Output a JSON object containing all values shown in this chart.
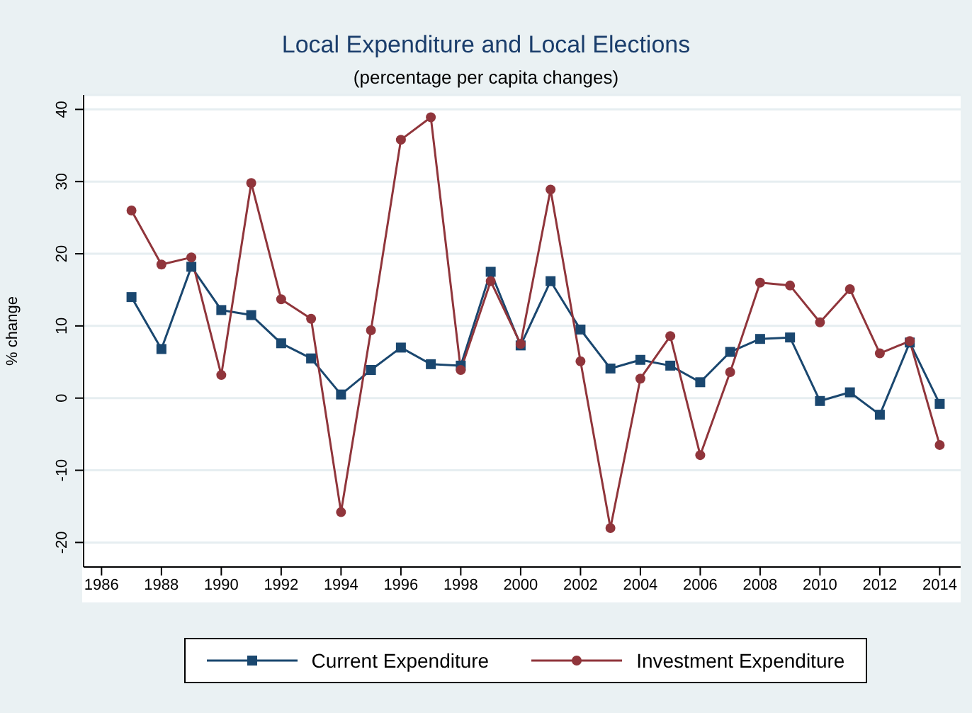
{
  "chart_data": {
    "type": "line",
    "title": "Local Expenditure and Local Elections",
    "subtitle": "(percentage per capita changes)",
    "ylabel": "% change",
    "x": [
      1987,
      1988,
      1989,
      1990,
      1991,
      1992,
      1993,
      1994,
      1995,
      1996,
      1997,
      1998,
      1999,
      2000,
      2001,
      2002,
      2003,
      2004,
      2005,
      2006,
      2007,
      2008,
      2009,
      2010,
      2011,
      2012,
      2013,
      2014
    ],
    "series": [
      {
        "name": "Current Expenditure",
        "color": "#1a476f",
        "marker": "square",
        "values": [
          14,
          6.8,
          18.2,
          12.2,
          11.5,
          7.6,
          5.5,
          0.5,
          3.9,
          7,
          4.7,
          4.5,
          17.5,
          7.3,
          16.2,
          9.5,
          4.1,
          5.3,
          4.5,
          2.2,
          6.4,
          8.2,
          8.4,
          -0.4,
          0.8,
          -2.3,
          7.7,
          -0.8
        ]
      },
      {
        "name": "Investment Expenditure",
        "color": "#90353b",
        "marker": "circle",
        "values": [
          26,
          18.5,
          19.5,
          3.2,
          29.8,
          13.7,
          11,
          -15.8,
          9.4,
          35.8,
          38.9,
          3.9,
          16.2,
          7.5,
          28.9,
          5.1,
          -18,
          2.7,
          8.6,
          -7.9,
          3.6,
          16,
          15.6,
          10.5,
          15.1,
          6.2,
          7.9,
          -6.5
        ]
      }
    ],
    "xlim": [
      1985.4,
      2014.7
    ],
    "xticks": [
      1986,
      1988,
      1990,
      1992,
      1994,
      1996,
      1998,
      2000,
      2002,
      2004,
      2006,
      2008,
      2010,
      2012,
      2014
    ],
    "ylim": [
      -23.4,
      42
    ],
    "yticks": [
      -20,
      -10,
      0,
      10,
      20,
      30,
      40
    ],
    "grid": "y",
    "legend": "bottom",
    "line_style": "solid"
  }
}
